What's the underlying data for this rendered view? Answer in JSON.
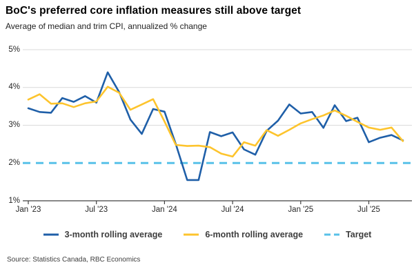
{
  "header": {
    "title": "BoC's preferred core inflation measures still above target",
    "subtitle": "Average of median and trim CPI, annualized % change"
  },
  "source_note": "Source: Statistics Canada, RBC Economics",
  "colors": {
    "series_3mo": "#1f5fa8",
    "series_6mo": "#fdc42d",
    "target": "#58c1e8",
    "gridline": "#d9d9d9",
    "axis": "#404040"
  },
  "legend": {
    "items": [
      {
        "label": "3-month rolling average",
        "color": "#1f5fa8",
        "style": "solid"
      },
      {
        "label": "6-month rolling average",
        "color": "#fdc42d",
        "style": "solid"
      },
      {
        "label": "Target",
        "color": "#58c1e8",
        "style": "dashed"
      }
    ]
  },
  "chart_data": {
    "type": "line",
    "title": "BoC's preferred core inflation measures still above target",
    "subtitle": "Average of median and trim CPI, annualized % change",
    "x": [
      "Jan '23",
      "Feb '23",
      "Mar '23",
      "Apr '23",
      "May '23",
      "Jun '23",
      "Jul '23",
      "Aug '23",
      "Sep '23",
      "Oct '23",
      "Nov '23",
      "Dec '23",
      "Jan '24",
      "Feb '24",
      "Mar '24",
      "Apr '24",
      "May '24",
      "Jun '24",
      "Jul '24",
      "Aug '24",
      "Sep '24",
      "Oct '24",
      "Nov '24",
      "Dec '24",
      "Jan '25",
      "Feb '25",
      "Mar '25",
      "Apr '25",
      "May '25",
      "Jun '25",
      "Jul '25",
      "Aug '25",
      "Sep '25",
      "Oct '25"
    ],
    "x_tick_labels": [
      "Jan '23",
      "Jul '23",
      "Jan '24",
      "Jul '24",
      "Jan '25",
      "Jul '25"
    ],
    "x_tick_indices": [
      0,
      6,
      12,
      18,
      24,
      30
    ],
    "y_tick_labels": [
      "5%",
      "4%",
      "3%",
      "2%",
      "1%"
    ],
    "y_tick_values": [
      5,
      4,
      3,
      2,
      1
    ],
    "y_gridline_values": [
      5,
      4,
      3
    ],
    "ylim": [
      1,
      5
    ],
    "ylabel": "",
    "grid": "horizontal",
    "legend_position": "bottom",
    "series": [
      {
        "name": "3-month rolling average",
        "color": "#1f5fa8",
        "values": [
          3.45,
          3.35,
          3.33,
          3.72,
          3.62,
          3.77,
          3.6,
          4.4,
          3.88,
          3.15,
          2.77,
          3.43,
          3.36,
          2.5,
          1.55,
          1.55,
          2.82,
          2.71,
          2.81,
          2.36,
          2.22,
          2.85,
          3.12,
          3.55,
          3.31,
          3.35,
          2.93,
          3.53,
          3.11,
          3.2,
          2.55,
          2.67,
          2.74,
          2.6
        ]
      },
      {
        "name": "6-month rolling average",
        "color": "#fdc42d",
        "values": [
          3.68,
          3.82,
          3.57,
          3.58,
          3.48,
          3.58,
          3.63,
          4.02,
          3.86,
          3.41,
          3.55,
          3.69,
          3.1,
          2.48,
          2.45,
          2.46,
          2.42,
          2.25,
          2.17,
          2.55,
          2.46,
          2.87,
          2.72,
          2.88,
          3.05,
          3.16,
          3.26,
          3.39,
          3.25,
          3.09,
          2.94,
          2.88,
          2.94,
          2.58
        ]
      }
    ],
    "target": {
      "name": "Target",
      "value": 2
    }
  }
}
